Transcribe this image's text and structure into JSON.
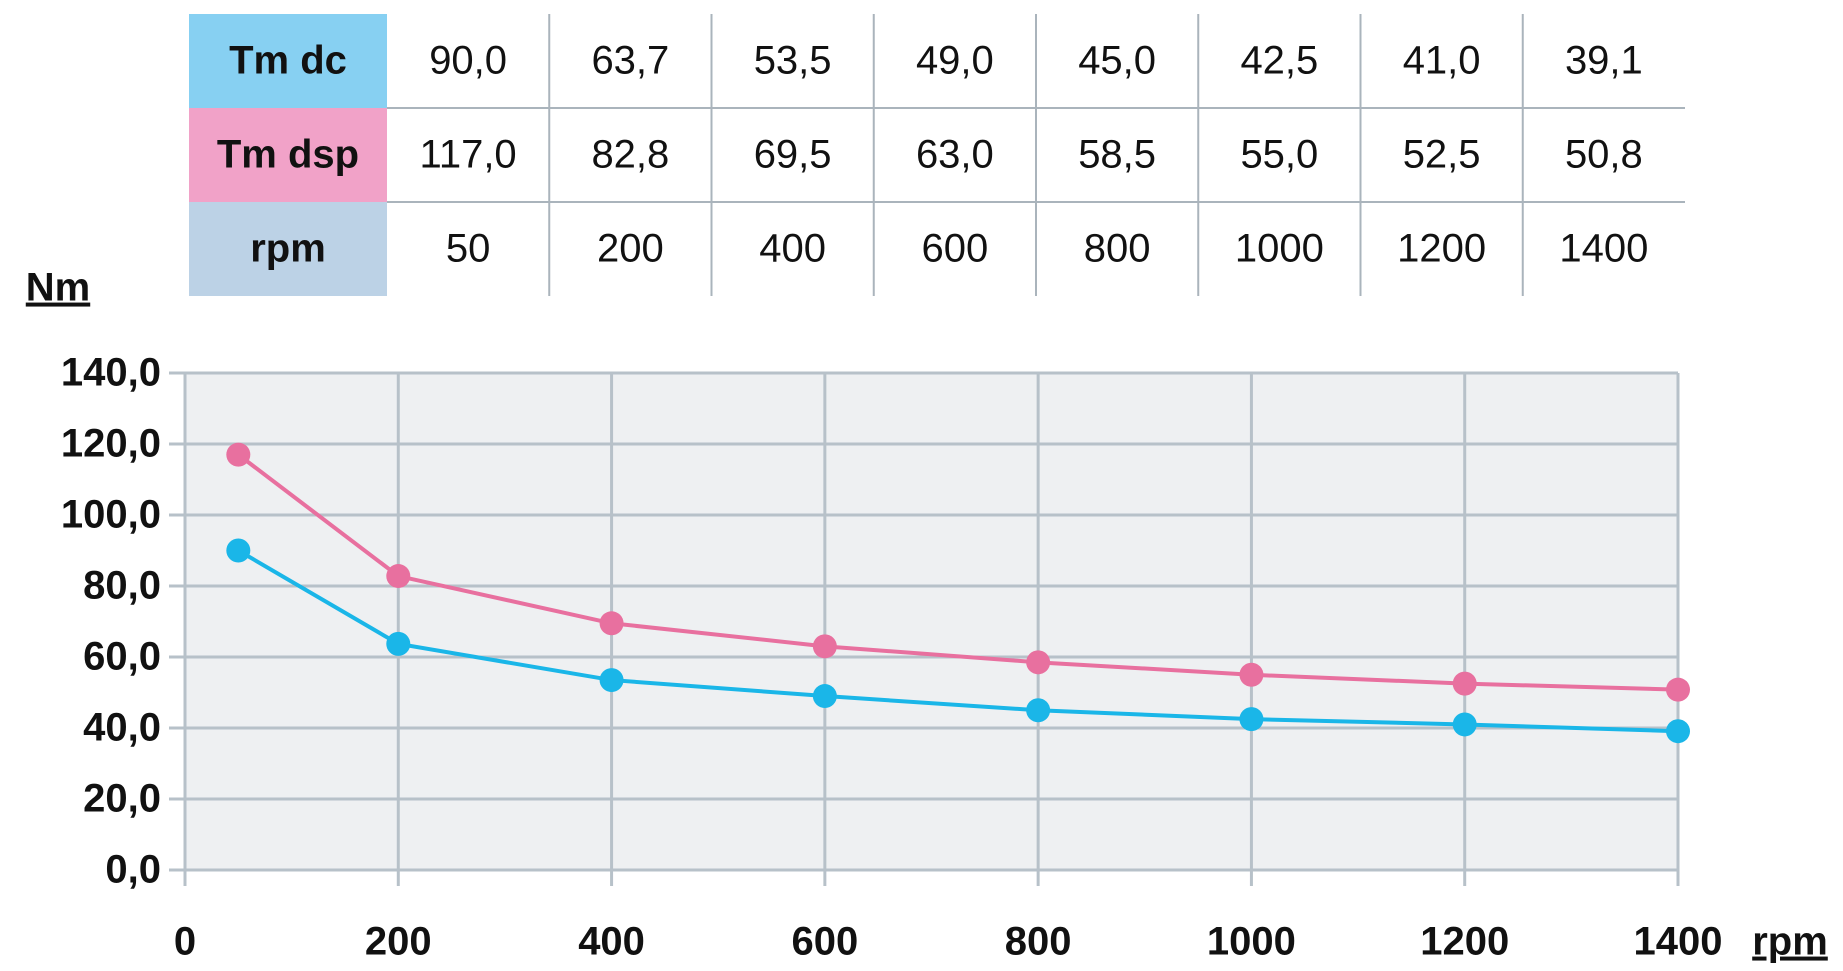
{
  "chart_data": {
    "type": "line",
    "ylabel": "Nm",
    "xlabel": "rpm",
    "x": [
      50,
      200,
      400,
      600,
      800,
      1000,
      1200,
      1400
    ],
    "series": [
      {
        "name": "Tm dc",
        "color": "#1ab6e8",
        "header_color": "#87d0f2",
        "values": [
          90.0,
          63.7,
          53.5,
          49.0,
          45.0,
          42.5,
          41.0,
          39.1
        ],
        "value_labels": [
          "90,0",
          "63,7",
          "53,5",
          "49,0",
          "45,0",
          "42,5",
          "41,0",
          "39,1"
        ]
      },
      {
        "name": "Tm dsp",
        "color": "#e8709f",
        "header_color": "#f1a2c8",
        "values": [
          117.0,
          82.8,
          69.5,
          63.0,
          58.5,
          55.0,
          52.5,
          50.8
        ],
        "value_labels": [
          "117,0",
          "82,8",
          "69,5",
          "63,0",
          "58,5",
          "55,0",
          "52,5",
          "50,8"
        ]
      }
    ],
    "x_header_color": "#bcd2e6",
    "xlim": [
      0,
      1400
    ],
    "xticks": [
      0,
      200,
      400,
      600,
      800,
      1000,
      1200,
      1400
    ],
    "ylim": [
      0,
      140
    ],
    "yticks": [
      {
        "value": 0,
        "label": "0,0"
      },
      {
        "value": 20,
        "label": "20,0"
      },
      {
        "value": 40,
        "label": "40,0"
      },
      {
        "value": 60,
        "label": "60,0"
      },
      {
        "value": 80,
        "label": "80,0"
      },
      {
        "value": 100,
        "label": "100,0"
      },
      {
        "value": 120,
        "label": "120,0"
      },
      {
        "value": 140,
        "label": "140,0"
      }
    ],
    "grid": true
  }
}
